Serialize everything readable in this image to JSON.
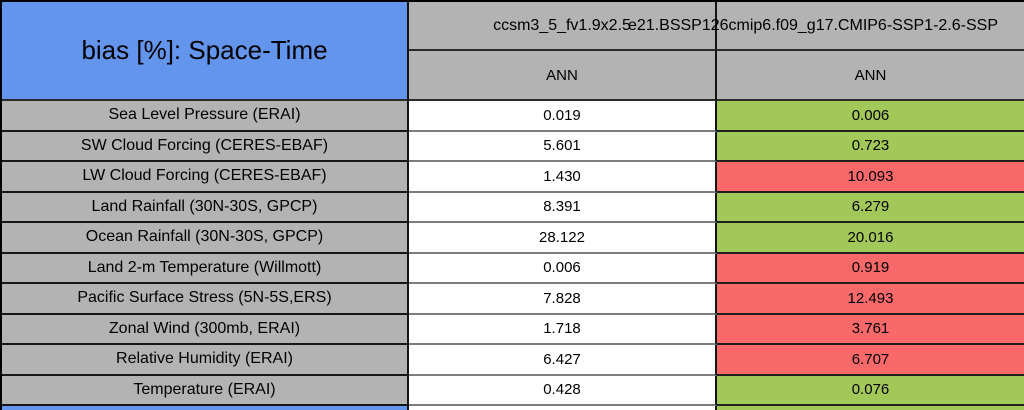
{
  "chart_data": {
    "type": "table",
    "title": "bias [%]: Space-Time",
    "columns": [
      {
        "model": "ccsm3_5_fv1.9x2.5",
        "season": "ANN"
      },
      {
        "model": "e21.BSSP126cmip6.f09_g17.CMIP6-SSP1-2.6-SSP",
        "season": "ANN"
      }
    ],
    "rows": [
      {
        "label": "Sea Level Pressure (ERAI)",
        "values": [
          "0.019",
          "0.006"
        ],
        "status": "better"
      },
      {
        "label": "SW Cloud Forcing (CERES-EBAF)",
        "values": [
          "5.601",
          "0.723"
        ],
        "status": "better"
      },
      {
        "label": "LW Cloud Forcing (CERES-EBAF)",
        "values": [
          "1.430",
          "10.093"
        ],
        "status": "worse"
      },
      {
        "label": "Land Rainfall (30N-30S, GPCP)",
        "values": [
          "8.391",
          "6.279"
        ],
        "status": "better"
      },
      {
        "label": "Ocean Rainfall (30N-30S, GPCP)",
        "values": [
          "28.122",
          "20.016"
        ],
        "status": "better"
      },
      {
        "label": "Land 2-m Temperature (Willmott)",
        "values": [
          "0.006",
          "0.919"
        ],
        "status": "worse"
      },
      {
        "label": "Pacific Surface Stress (5N-5S,ERS)",
        "values": [
          "7.828",
          "12.493"
        ],
        "status": "worse"
      },
      {
        "label": "Zonal Wind (300mb, ERAI)",
        "values": [
          "1.718",
          "3.761"
        ],
        "status": "worse"
      },
      {
        "label": "Relative Humidity (ERAI)",
        "values": [
          "6.427",
          "6.707"
        ],
        "status": "worse"
      },
      {
        "label": "Temperature (ERAI)",
        "values": [
          "0.428",
          "0.076"
        ],
        "status": "better"
      }
    ],
    "legend": {
      "better": "green = lower bias",
      "worse": "red = higher bias"
    }
  },
  "colors": {
    "title_blue": "#6495ed",
    "header_gray": "#b3b3b3",
    "value_white": "#ffffff",
    "better": "#a3c85a",
    "worse": "#f9696a",
    "border_black": "#000000"
  }
}
